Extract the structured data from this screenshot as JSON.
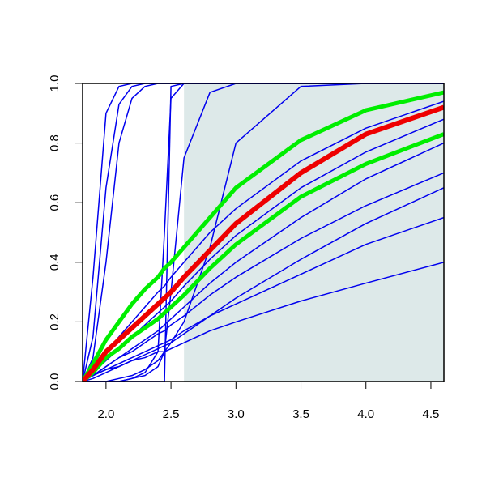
{
  "chart_data": {
    "type": "line",
    "x": [
      1.82,
      1.9,
      2.0,
      2.1,
      2.2,
      2.3,
      2.4,
      2.45,
      2.5,
      2.6,
      2.8,
      3.0,
      3.5,
      4.0,
      4.6
    ],
    "xlim": [
      1.82,
      4.6
    ],
    "ylim": [
      0,
      1
    ],
    "xticks": [
      {
        "value": 2,
        "label": "2.0"
      },
      2.5,
      {
        "value": 3,
        "label": "3.0"
      },
      3.5,
      {
        "value": 4,
        "label": "4.0"
      },
      4.5
    ],
    "yticks": [
      {
        "value": 0,
        "label": "0.0"
      },
      0.2,
      0.4,
      0.6,
      0.8,
      {
        "value": 1,
        "label": "1.0"
      }
    ],
    "shade_from": 2.6,
    "shade_color": "#dde9e9",
    "series": [
      {
        "color": "#0000ee",
        "linewidth": 1.5,
        "values": [
          0,
          0.35,
          0.9,
          0.99,
          1,
          1,
          1,
          1,
          1,
          1,
          1,
          1,
          1,
          1,
          1
        ]
      },
      {
        "color": "#0000ee",
        "linewidth": 1.5,
        "values": [
          0,
          0.15,
          0.65,
          0.93,
          0.99,
          1,
          1,
          1,
          1,
          1,
          1,
          1,
          1,
          1,
          1
        ]
      },
      {
        "color": "#0000ee",
        "linewidth": 1.5,
        "values": [
          0,
          0.08,
          0.4,
          0.8,
          0.95,
          0.99,
          1,
          1,
          1,
          1,
          1,
          1,
          1,
          1,
          1
        ]
      },
      {
        "color": "#0000ee",
        "linewidth": 1.5,
        "values": [
          0,
          0,
          0,
          0,
          0.01,
          0.03,
          0.1,
          0.5,
          0.95,
          1,
          1,
          1,
          1,
          1,
          1
        ]
      },
      {
        "color": "#0000ee",
        "linewidth": 1.5,
        "values": [
          0,
          0,
          0,
          0,
          0,
          0,
          0,
          0,
          0.99,
          1,
          1,
          1,
          1,
          1,
          1
        ]
      },
      {
        "color": "#0000ee",
        "linewidth": 1.5,
        "values": [
          0,
          0,
          0,
          0,
          0.01,
          0.02,
          0.05,
          0.1,
          0.3,
          0.75,
          0.97,
          1,
          1,
          1,
          1
        ]
      },
      {
        "color": "#0000ee",
        "linewidth": 1.5,
        "values": [
          0,
          0,
          0,
          0.01,
          0.02,
          0.04,
          0.07,
          0.1,
          0.13,
          0.2,
          0.45,
          0.8,
          0.99,
          1,
          1
        ]
      },
      {
        "color": "#0000ee",
        "linewidth": 1.5,
        "values": [
          0,
          0.03,
          0.07,
          0.11,
          0.15,
          0.19,
          0.23,
          0.25,
          0.27,
          0.32,
          0.41,
          0.49,
          0.65,
          0.77,
          0.88
        ]
      },
      {
        "color": "#0000ee",
        "linewidth": 1.5,
        "values": [
          0,
          0.02,
          0.05,
          0.08,
          0.11,
          0.14,
          0.17,
          0.19,
          0.21,
          0.25,
          0.33,
          0.4,
          0.55,
          0.68,
          0.8
        ]
      },
      {
        "color": "#0000ee",
        "linewidth": 1.5,
        "values": [
          0,
          0.02,
          0.05,
          0.08,
          0.1,
          0.13,
          0.16,
          0.17,
          0.19,
          0.22,
          0.29,
          0.35,
          0.48,
          0.59,
          0.7
        ]
      },
      {
        "color": "#0000ee",
        "linewidth": 1.5,
        "values": [
          0,
          0.02,
          0.04,
          0.06,
          0.08,
          0.1,
          0.12,
          0.13,
          0.14,
          0.17,
          0.22,
          0.26,
          0.36,
          0.46,
          0.55
        ]
      },
      {
        "color": "#0000ee",
        "linewidth": 1.5,
        "values": [
          0,
          0.02,
          0.04,
          0.05,
          0.07,
          0.08,
          0.1,
          0.1,
          0.11,
          0.13,
          0.17,
          0.2,
          0.27,
          0.33,
          0.4
        ]
      },
      {
        "color": "#0000ee",
        "linewidth": 1.5,
        "values": [
          0,
          0.04,
          0.1,
          0.15,
          0.2,
          0.25,
          0.3,
          0.32,
          0.35,
          0.4,
          0.5,
          0.58,
          0.74,
          0.85,
          0.94
        ]
      },
      {
        "color": "#0000ee",
        "linewidth": 1.5,
        "values": [
          0,
          0.01,
          0.03,
          0.05,
          0.07,
          0.09,
          0.11,
          0.12,
          0.13,
          0.16,
          0.22,
          0.28,
          0.41,
          0.53,
          0.65
        ]
      },
      {
        "color": "#00ee00",
        "linewidth": 5,
        "values": [
          0,
          0.06,
          0.14,
          0.2,
          0.26,
          0.31,
          0.35,
          0.38,
          0.4,
          0.45,
          0.55,
          0.65,
          0.81,
          0.91,
          0.97
        ]
      },
      {
        "color": "#00ee00",
        "linewidth": 5,
        "values": [
          0,
          0.03,
          0.08,
          0.11,
          0.15,
          0.18,
          0.21,
          0.23,
          0.25,
          0.29,
          0.38,
          0.46,
          0.62,
          0.73,
          0.83
        ]
      },
      {
        "color": "#ee0000",
        "linewidth": 6,
        "values": [
          0,
          0.04,
          0.1,
          0.14,
          0.18,
          0.22,
          0.26,
          0.28,
          0.3,
          0.35,
          0.44,
          0.53,
          0.7,
          0.83,
          0.92
        ]
      }
    ]
  }
}
